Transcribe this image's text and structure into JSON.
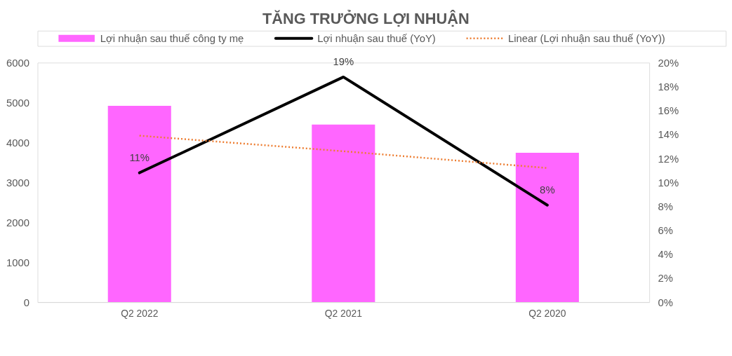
{
  "chart_data": {
    "type": "bar",
    "title": "TĂNG TRƯỞNG LỢI NHUẬN",
    "categories": [
      "Q2 2022",
      "Q2 2021",
      "Q2 2020"
    ],
    "series": [
      {
        "name": "Lợi nhuận sau thuế công ty mẹ",
        "color": "#ff66ff",
        "values": [
          4920,
          4450,
          3740
        ]
      },
      {
        "name": "Lợi nhuận sau thuế (YoY)",
        "type": "line",
        "axis": "y2",
        "color": "#000000",
        "line_style": "solid",
        "values": [
          10.8,
          18.8,
          8.1
        ],
        "value_labels": [
          "11%",
          "19%",
          "8%"
        ]
      },
      {
        "name": "Linear (Lợi nhuận sau thuế (YoY))",
        "type": "line",
        "axis": "y2",
        "color": "#ed7d31",
        "line_style": "dotted",
        "values": [
          13.9,
          12.6,
          11.2
        ]
      }
    ],
    "ylim": [
      0,
      6000
    ],
    "yticks": [
      0,
      1000,
      2000,
      3000,
      4000,
      5000,
      6000
    ],
    "y2lim": [
      0,
      20
    ],
    "y2ticks": [
      {
        "value": 0,
        "label": "0%"
      },
      {
        "value": 2,
        "label": "2%"
      },
      {
        "value": 4,
        "label": "4%"
      },
      {
        "value": 6,
        "label": "6%"
      },
      {
        "value": 8,
        "label": "8%"
      },
      {
        "value": 10,
        "label": "10%"
      },
      {
        "value": 12,
        "label": "12%"
      },
      {
        "value": 14,
        "label": "14%"
      },
      {
        "value": 16,
        "label": "16%"
      },
      {
        "value": 18,
        "label": "18%"
      },
      {
        "value": 20,
        "label": "20%"
      }
    ],
    "legend": "top",
    "grid": false,
    "marker": "none"
  }
}
